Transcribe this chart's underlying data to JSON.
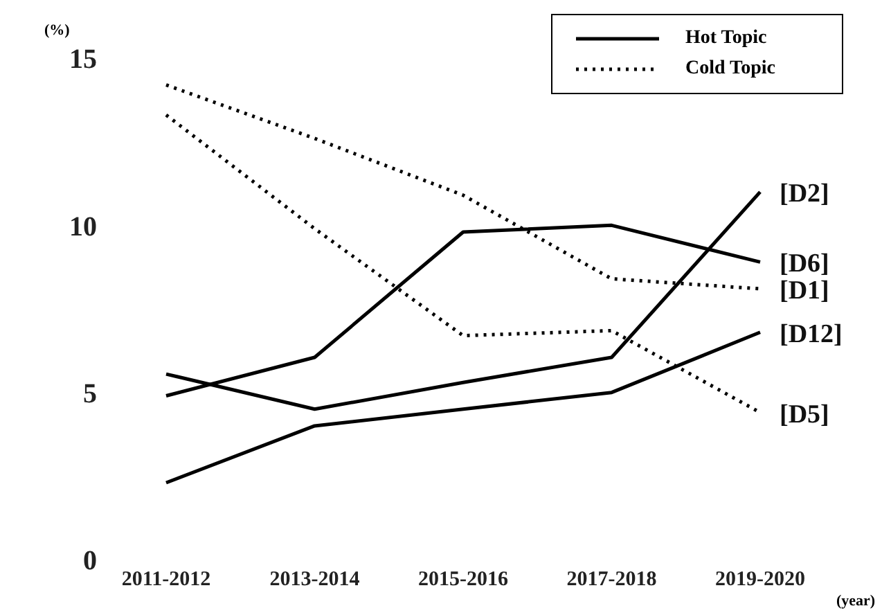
{
  "chart_data": {
    "type": "line",
    "ylabel": "(%)",
    "xlabel": "(year)",
    "categories": [
      "2011-2012",
      "2013-2014",
      "2015-2016",
      "2017-2018",
      "2019-2020"
    ],
    "series": [
      {
        "name": "[D2]",
        "color": "#000000",
        "line_style": "solid",
        "values": [
          5.55,
          4.5,
          5.3,
          6.05,
          11.0
        ]
      },
      {
        "name": "[D6]",
        "color": "#000000",
        "line_style": "solid",
        "values": [
          4.9,
          6.05,
          9.8,
          10.0,
          8.9
        ]
      },
      {
        "name": "[D1]",
        "color": "#000000",
        "line_style": "dotted",
        "values": [
          14.2,
          12.6,
          10.9,
          8.4,
          8.1
        ]
      },
      {
        "name": "[D12]",
        "color": "#000000",
        "line_style": "solid",
        "values": [
          2.3,
          4.0,
          4.5,
          5.0,
          6.8
        ]
      },
      {
        "name": "[D5]",
        "color": "#000000",
        "line_style": "dotted",
        "values": [
          13.3,
          9.9,
          6.7,
          6.85,
          4.4
        ]
      }
    ],
    "ylim": [
      0,
      15
    ],
    "yticks": [
      0,
      5,
      10,
      15
    ],
    "grid": false,
    "marker": "none",
    "legend": "top right",
    "annotations": [
      "Hot Topic",
      "Cold Topic"
    ]
  }
}
